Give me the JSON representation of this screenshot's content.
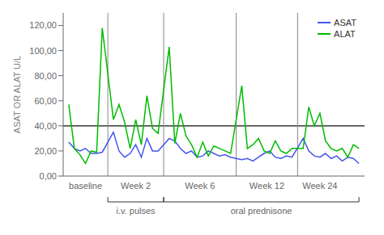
{
  "chart_data": {
    "type": "line",
    "ylabel": "ASAT OR ALAT U/L",
    "x": [
      1,
      2,
      3,
      4,
      5,
      6,
      7,
      9,
      10,
      11,
      12,
      13,
      14,
      15,
      16,
      17,
      19,
      20,
      21,
      22,
      23,
      24,
      25,
      26,
      27,
      28,
      29,
      30,
      32,
      33,
      34,
      35,
      36,
      37,
      38,
      39,
      40,
      41,
      43,
      44,
      45,
      46,
      47,
      48,
      49,
      50,
      51,
      52,
      53
    ],
    "series": [
      {
        "name": "ASAT",
        "color": "#4455ee",
        "values": [
          27,
          22,
          20,
          22,
          18,
          18,
          19,
          35,
          20,
          15,
          18,
          25,
          15,
          30,
          20,
          20,
          30,
          28,
          22,
          18,
          20,
          15,
          16,
          20,
          18,
          16,
          17,
          15,
          13,
          14,
          12,
          15,
          18,
          20,
          15,
          14,
          16,
          15,
          30,
          20,
          16,
          15,
          18,
          14,
          16,
          12,
          15,
          14,
          10
        ]
      },
      {
        "name": "ALAT",
        "color": "#00bb00",
        "values": [
          57,
          22,
          17,
          10,
          20,
          19,
          118,
          45,
          57,
          43,
          22,
          45,
          25,
          64,
          38,
          34,
          103,
          26,
          50,
          32,
          25,
          15,
          27,
          16,
          24,
          22,
          20,
          18,
          72,
          22,
          25,
          30,
          20,
          18,
          28,
          20,
          18,
          22,
          22,
          55,
          40,
          50,
          28,
          22,
          20,
          22,
          15,
          25,
          22
        ]
      }
    ],
    "xlim": [
      0,
      54
    ],
    "xticks": [
      {
        "value": 4,
        "label": "baseline"
      },
      {
        "value": 13,
        "label": "Week 2"
      },
      {
        "value": 24.5,
        "label": "Week 6"
      },
      {
        "value": 36.5,
        "label": "Week 12"
      },
      {
        "value": 46,
        "label": "Week 24"
      }
    ],
    "ylim": [
      0,
      130
    ],
    "yticks": [
      {
        "value": 0,
        "label": "0,00"
      },
      {
        "value": 20,
        "label": "20,00"
      },
      {
        "value": 40,
        "label": "40,00"
      },
      {
        "value": 60,
        "label": "60,00"
      },
      {
        "value": 80,
        "label": "80,00"
      },
      {
        "value": 100,
        "label": "100,00"
      },
      {
        "value": 120,
        "label": "120,00"
      }
    ],
    "grid": false,
    "legend": "upper right",
    "reference_lines": [
      {
        "axis": "y",
        "value": 40,
        "color": "#111111"
      },
      {
        "axis": "x",
        "value": 8,
        "color": "#888888"
      },
      {
        "axis": "x",
        "value": 18,
        "color": "#888888"
      },
      {
        "axis": "x",
        "value": 31,
        "color": "#888888"
      },
      {
        "axis": "x",
        "value": 42,
        "color": "#888888"
      }
    ],
    "annotations": [
      {
        "text": "i.v. pulses",
        "x": 13,
        "x1": 8,
        "x2": 18
      },
      {
        "text": "oral prednisone",
        "x": 35.5,
        "x1": 18,
        "x2": 53
      }
    ]
  }
}
